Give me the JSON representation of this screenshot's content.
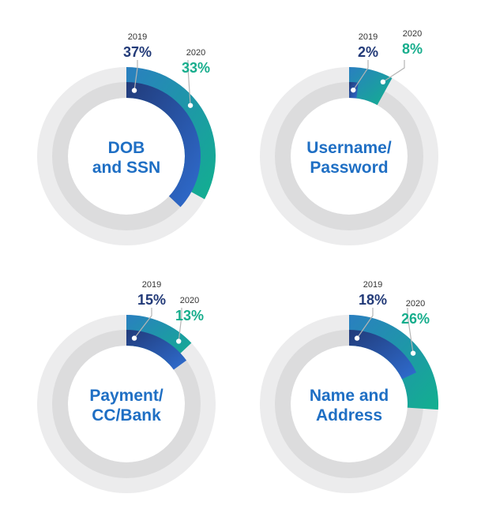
{
  "colors": {
    "track_outer": "#ececed",
    "track_inner": "#dcdcdd",
    "series_2019_start": "#213b7a",
    "series_2019_end": "#2f6dd0",
    "series_2020_start": "#2a7fc0",
    "series_2020_end": "#12b08f",
    "label_2019": "#223a78",
    "label_2020": "#16ad8c",
    "center_label": "#1f6fc4",
    "leader": "#b5b5b5"
  },
  "chart_data": [
    {
      "type": "donut",
      "center_label": [
        "DOB",
        "and SSN"
      ],
      "series": [
        {
          "name": "2019",
          "value": 37,
          "value_label": "37%"
        },
        {
          "name": "2020",
          "value": 33,
          "value_label": "33%"
        }
      ]
    },
    {
      "type": "donut",
      "center_label": [
        "Username/",
        "Password"
      ],
      "series": [
        {
          "name": "2019",
          "value": 2,
          "value_label": "2%"
        },
        {
          "name": "2020",
          "value": 8,
          "value_label": "8%"
        }
      ]
    },
    {
      "type": "donut",
      "center_label": [
        "Payment/",
        "CC/Bank"
      ],
      "series": [
        {
          "name": "2019",
          "value": 15,
          "value_label": "15%"
        },
        {
          "name": "2020",
          "value": 13,
          "value_label": "13%"
        }
      ]
    },
    {
      "type": "donut",
      "center_label": [
        "Name and",
        "Address"
      ],
      "series": [
        {
          "name": "2019",
          "value": 18,
          "value_label": "18%"
        },
        {
          "name": "2020",
          "value": 26,
          "value_label": "26%"
        }
      ]
    }
  ]
}
